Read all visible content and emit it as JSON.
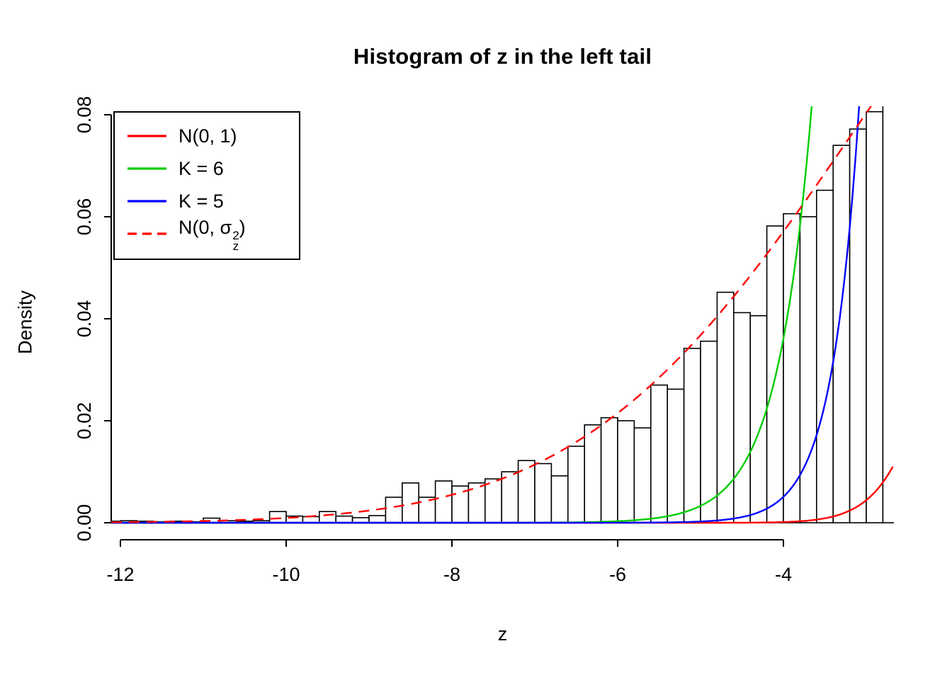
{
  "chart_data": {
    "type": "bar",
    "subtype": "histogram-with-density-curves",
    "title": "Histogram of z in the left tail",
    "xlabel": "z",
    "ylabel": "Density",
    "xlim": [
      -12.11,
      -2.68
    ],
    "ylim": [
      0,
      0.0835
    ],
    "x_ticks": [
      -12,
      -10,
      -8,
      -6,
      -4
    ],
    "x_tick_labels": [
      "-12",
      "-10",
      "-8",
      "-6",
      "-4"
    ],
    "y_ticks": [
      0,
      0.02,
      0.04,
      0.06,
      0.08
    ],
    "y_tick_labels": [
      "0.00",
      "0.02",
      "0.04",
      "0.06",
      "0.08"
    ],
    "grid": false,
    "legend_position": "topleft",
    "histogram": {
      "bin_start": -12.2,
      "bin_width": 0.2,
      "bar_fill": "#ffffff",
      "bar_stroke": "#000000",
      "densities": [
        0.0003,
        0.0004,
        0.0003,
        0.0002,
        0.0003,
        0.0002,
        0.0009,
        0.0004,
        0.0003,
        0.0004,
        0.0022,
        0.0013,
        0.0012,
        0.0022,
        0.0013,
        0.001,
        0.0014,
        0.005,
        0.0078,
        0.005,
        0.0082,
        0.0072,
        0.0078,
        0.0086,
        0.01,
        0.0122,
        0.0116,
        0.0092,
        0.015,
        0.0192,
        0.0206,
        0.02,
        0.0186,
        0.027,
        0.0262,
        0.0342,
        0.0356,
        0.0452,
        0.0412,
        0.0406,
        0.0582,
        0.0606,
        0.06,
        0.0652,
        0.074,
        0.0772,
        0.0806,
        0.083
      ]
    },
    "curves": [
      {
        "name": "N(0, 1)",
        "color": "#ff0000",
        "style": "solid",
        "model": "normal",
        "mean": 0,
        "sd": 1
      },
      {
        "name": "K = 6",
        "color": "#00cd00",
        "style": "solid",
        "model": "exponential",
        "base": 0.0834,
        "rate": 2.39,
        "z_ref": -3.65
      },
      {
        "name": "K = 5",
        "color": "#0000ff",
        "style": "solid",
        "model": "exponential",
        "base": 0.0834,
        "rate": 3.04,
        "z_ref": -3.08
      },
      {
        "name": "N(0, sigma_z^2)",
        "color": "#ff0000",
        "style": "dashed",
        "model": "normal",
        "mean": 0,
        "sd": 3.2
      }
    ]
  },
  "legend": {
    "items": [
      {
        "label": "N(0, 1)",
        "color": "#ff0000",
        "dash": "solid"
      },
      {
        "label": "K = 6",
        "color": "#00cd00",
        "dash": "solid"
      },
      {
        "label": "K = 5",
        "color": "#0000ff",
        "dash": "solid"
      },
      {
        "label_prefix": "N(0, σ",
        "label_sup": "2",
        "label_sub": "z",
        "label_suffix": ")",
        "color": "#ff0000",
        "dash": "dashed"
      }
    ]
  }
}
